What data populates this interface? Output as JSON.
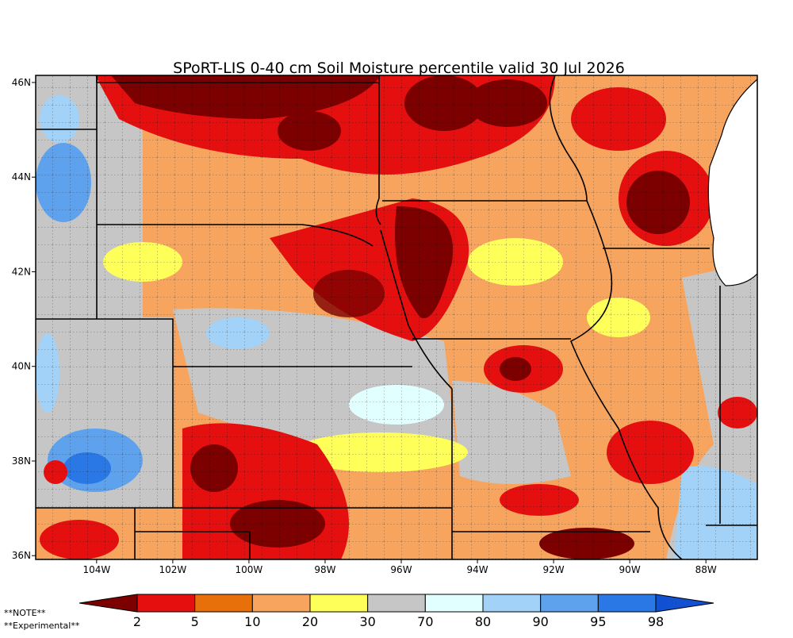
{
  "title": "SPoRT-LIS 0-40 cm Soil Moisture percentile valid 30 Jul 2026",
  "map": {
    "lon_range": [
      -105.6,
      -86.65
    ],
    "lat_range": [
      35.92,
      46.15
    ],
    "lon_ticks": [
      {
        "value": -104,
        "label": "104W"
      },
      {
        "value": -102,
        "label": "102W"
      },
      {
        "value": -100,
        "label": "100W"
      },
      {
        "value": -98,
        "label": "98W"
      },
      {
        "value": -96,
        "label": "96W"
      },
      {
        "value": -94,
        "label": "94W"
      },
      {
        "value": -92,
        "label": "92W"
      },
      {
        "value": -90,
        "label": "90W"
      },
      {
        "value": -88,
        "label": "88W"
      }
    ],
    "lat_ticks": [
      {
        "value": 46,
        "label": "46N"
      },
      {
        "value": 44,
        "label": "44N"
      },
      {
        "value": 42,
        "label": "42N"
      },
      {
        "value": 40,
        "label": "40N"
      },
      {
        "value": 38,
        "label": "38N"
      },
      {
        "value": 36,
        "label": "36N"
      }
    ]
  },
  "colorbar": {
    "bounds": [
      2,
      5,
      10,
      20,
      30,
      70,
      80,
      90,
      95,
      98
    ],
    "colors": [
      "#7d0000",
      "#e60f0f",
      "#e8700a",
      "#f7a55e",
      "#ffff5a",
      "#c6c6c6",
      "#e2ffff",
      "#a2d2f8",
      "#5ea2ee",
      "#2a78e6",
      "#1250d2"
    ]
  },
  "notes": [
    "**NOTE**",
    "**Experimental**"
  ]
}
